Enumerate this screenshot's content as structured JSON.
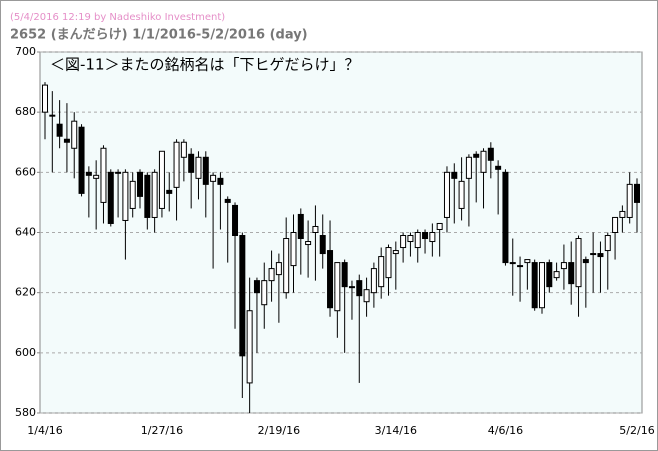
{
  "chart_data": {
    "type": "candlestick",
    "source": "(5/4/2016 12:19 by Nadeshiko Investment)",
    "title": "2652 (まんだらけ) 1/1/2016-5/2/2016 (day)",
    "annotation": "＜図-11＞またの銘柄名は「下ヒゲだらけ」？",
    "categories": [
      "1/4/16",
      null,
      null,
      null,
      null,
      null,
      null,
      null,
      null,
      null,
      null,
      null,
      null,
      null,
      null,
      null,
      "1/27/16",
      null,
      null,
      null,
      null,
      null,
      null,
      null,
      null,
      null,
      null,
      null,
      null,
      null,
      null,
      null,
      "2/19/16",
      null,
      null,
      null,
      null,
      null,
      null,
      null,
      null,
      null,
      null,
      null,
      null,
      null,
      null,
      null,
      "3/14/16",
      null,
      null,
      null,
      null,
      null,
      null,
      null,
      null,
      null,
      null,
      null,
      null,
      null,
      null,
      "4/6/16",
      null,
      null,
      null,
      null,
      null,
      null,
      null,
      null,
      null,
      null,
      null,
      null,
      null,
      null,
      null,
      null,
      null,
      "5/2/16"
    ],
    "open": [
      680,
      679,
      676,
      671,
      668,
      675,
      660,
      658,
      650,
      660,
      660,
      644,
      648,
      660,
      659,
      645,
      648,
      654,
      655,
      665,
      666,
      658,
      665,
      657,
      658,
      651,
      649,
      639,
      590,
      624,
      616,
      624,
      626,
      620,
      629,
      646,
      636,
      640,
      639,
      634,
      614,
      630,
      622,
      624,
      617,
      620,
      622,
      625,
      633,
      635,
      637,
      635,
      640,
      637,
      641,
      645,
      660,
      648,
      658,
      666,
      660,
      668,
      662,
      660,
      630,
      629,
      630,
      630,
      615,
      630,
      625,
      628,
      630,
      622,
      631,
      633,
      633,
      634,
      640,
      645,
      645,
      656
    ],
    "high": [
      690,
      687,
      684,
      683,
      680,
      676,
      662,
      664,
      669,
      661,
      661,
      661,
      660,
      661,
      660,
      661,
      667,
      660,
      671,
      671,
      668,
      667,
      667,
      660,
      660,
      652,
      650,
      640,
      625,
      625,
      630,
      634,
      633,
      645,
      646,
      648,
      644,
      649,
      646,
      644,
      630,
      631,
      624,
      626,
      625,
      630,
      635,
      636,
      637,
      640,
      640,
      641,
      641,
      643,
      643,
      662,
      663,
      665,
      666,
      667,
      668,
      670,
      664,
      661,
      638,
      632,
      631,
      631,
      630,
      631,
      630,
      636,
      637,
      639,
      632,
      640,
      637,
      640,
      645,
      649,
      660,
      658
    ],
    "low": [
      671,
      660,
      668,
      660,
      658,
      652,
      645,
      641,
      643,
      642,
      645,
      631,
      645,
      648,
      641,
      640,
      645,
      647,
      644,
      657,
      648,
      651,
      645,
      628,
      641,
      630,
      608,
      585,
      580,
      600,
      608,
      617,
      610,
      618,
      620,
      626,
      625,
      624,
      628,
      612,
      605,
      600,
      611,
      590,
      612,
      615,
      618,
      619,
      621,
      630,
      632,
      630,
      633,
      632,
      632,
      640,
      643,
      644,
      642,
      650,
      648,
      658,
      646,
      629,
      619,
      617,
      621,
      614,
      613,
      620,
      624,
      621,
      616,
      612,
      615,
      620,
      620,
      621,
      631,
      640,
      643,
      640
    ],
    "close": [
      689,
      679,
      672,
      670,
      677,
      653,
      659,
      659,
      668,
      643,
      660,
      660,
      657,
      652,
      645,
      660,
      667,
      653,
      670,
      670,
      660,
      665,
      656,
      659,
      656,
      650,
      639,
      599,
      614,
      620,
      624,
      628,
      630,
      638,
      640,
      638,
      637,
      642,
      633,
      615,
      630,
      622,
      622,
      619,
      621,
      628,
      632,
      635,
      634,
      639,
      639,
      640,
      638,
      640,
      643,
      660,
      658,
      657,
      665,
      665,
      667,
      664,
      661,
      630,
      630,
      629,
      631,
      615,
      630,
      622,
      627,
      630,
      623,
      638,
      630,
      633,
      632,
      639,
      645,
      647,
      656,
      650
    ],
    "up_color": "#ffffff",
    "down_color": "#000000",
    "ylim": [
      580,
      700
    ],
    "yticks": [
      580,
      600,
      620,
      640,
      660,
      680,
      700
    ],
    "grid": true
  }
}
